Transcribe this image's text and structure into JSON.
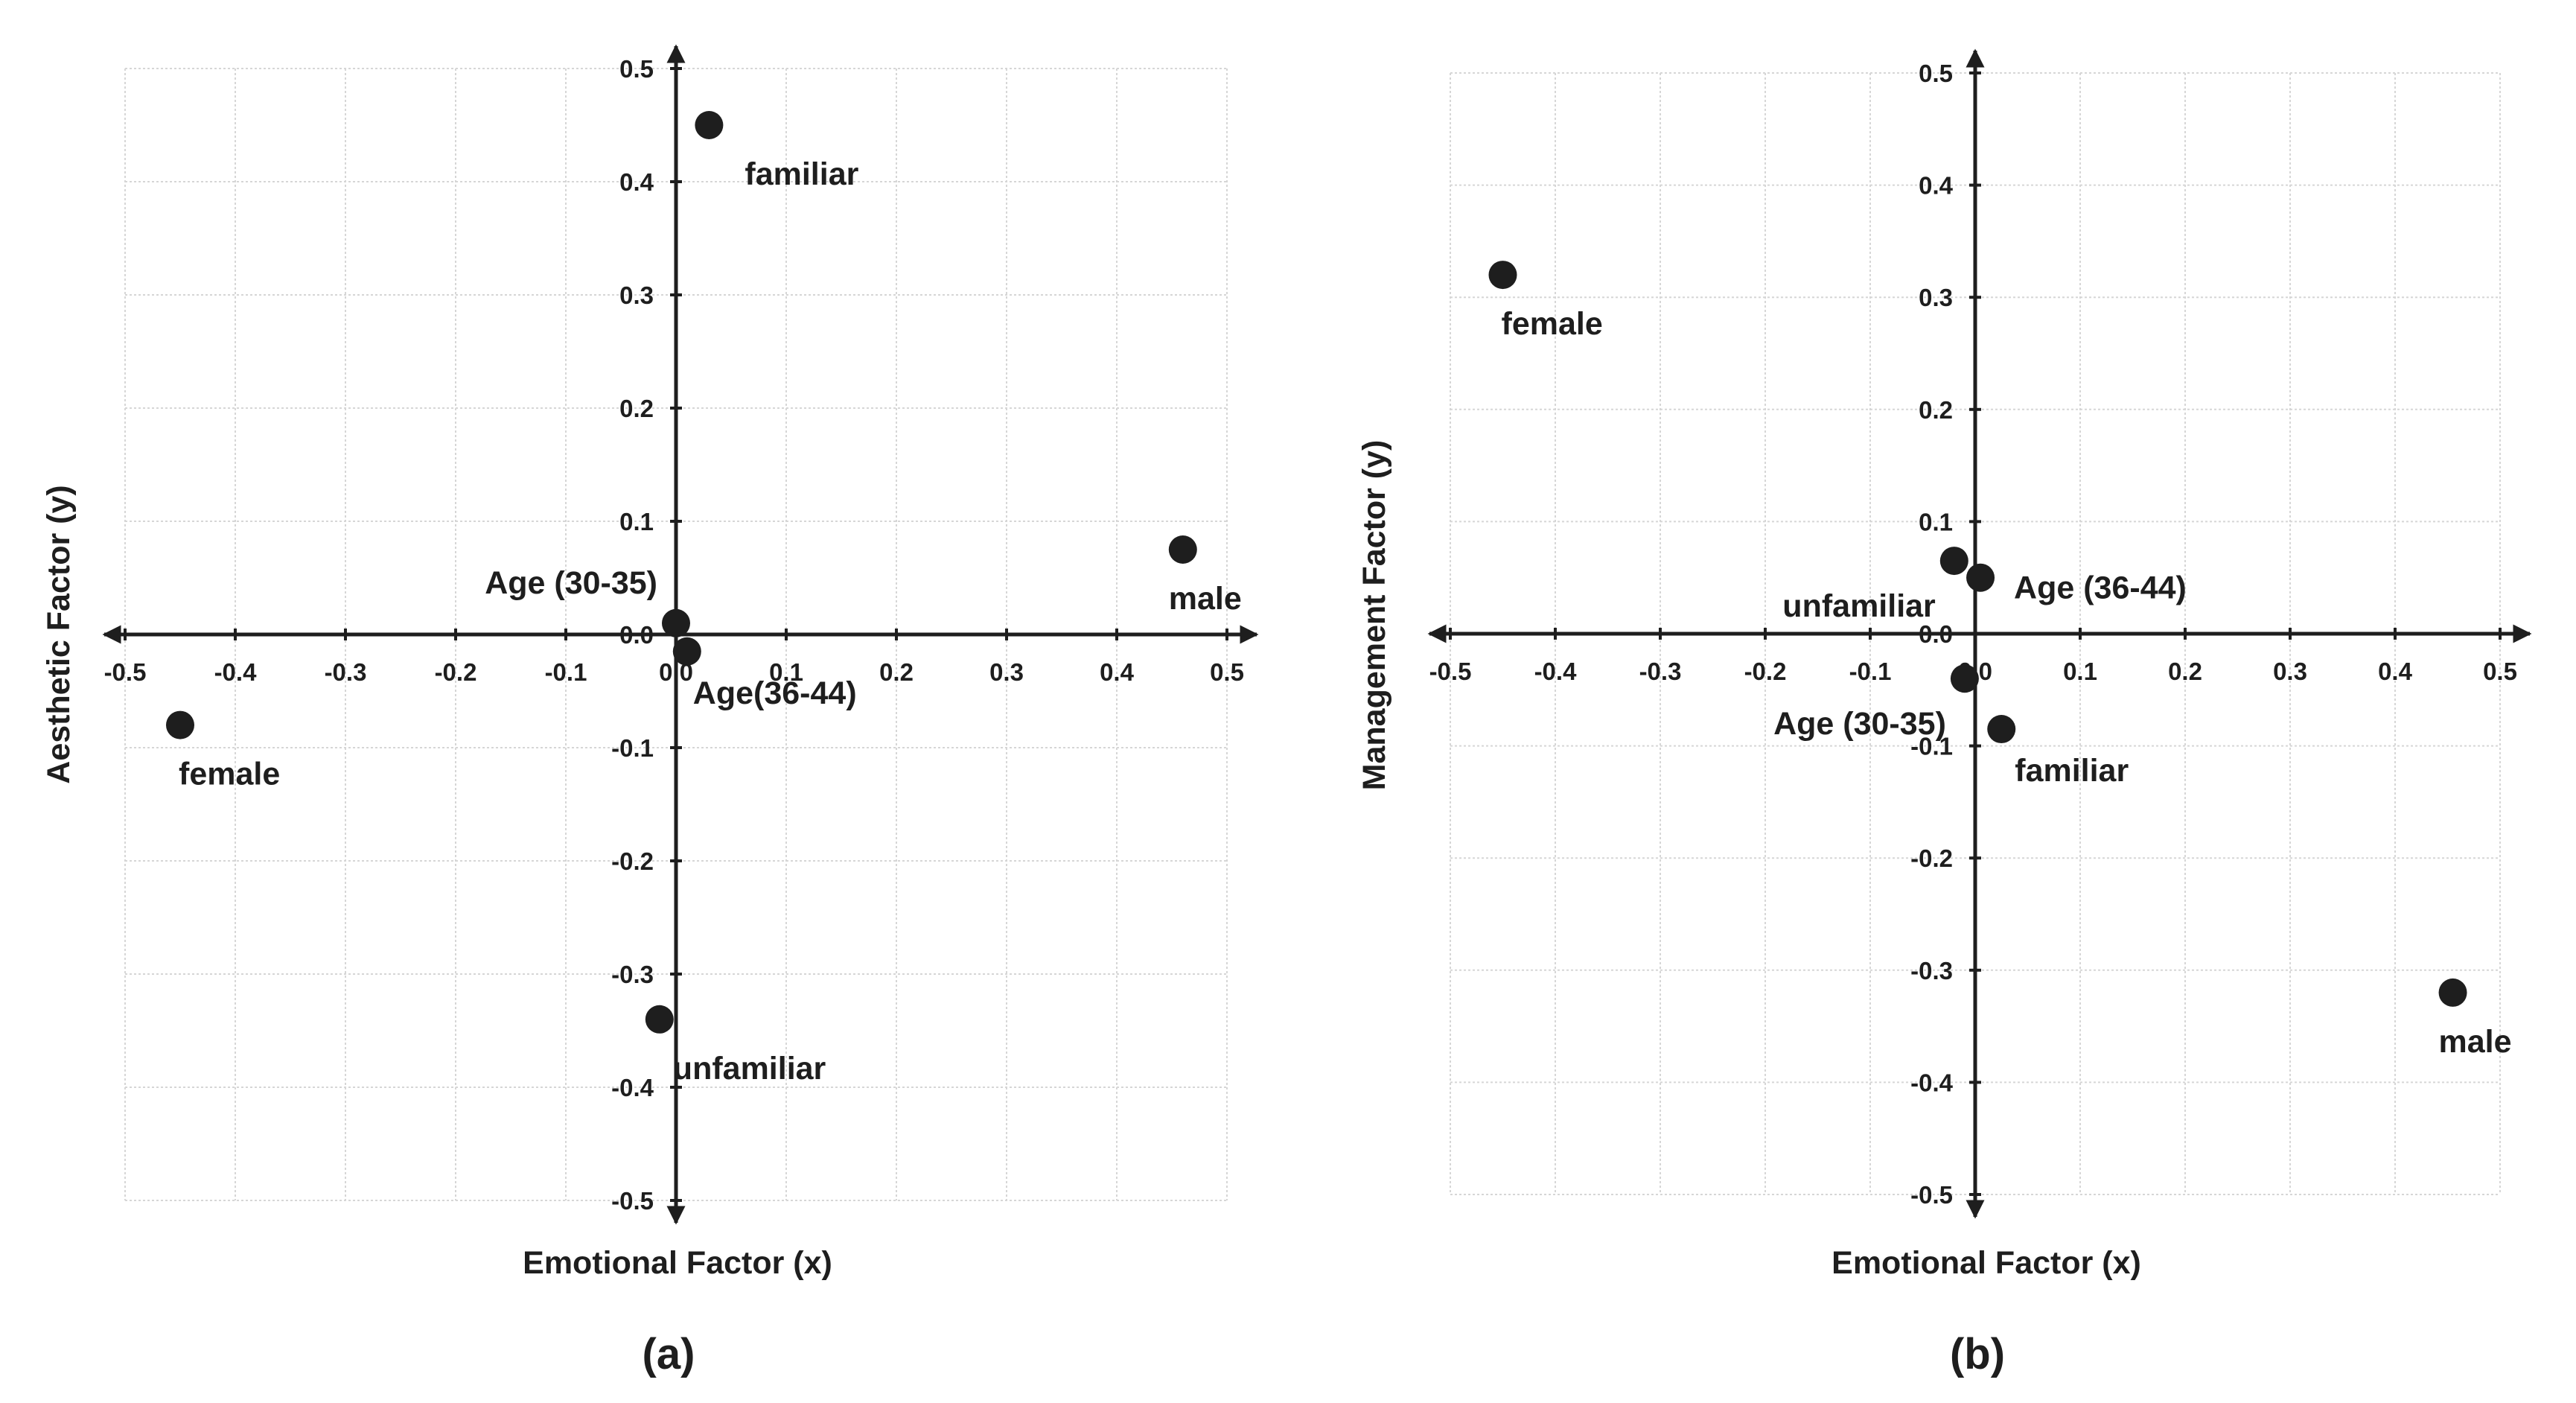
{
  "chart_data": [
    {
      "type": "scatter",
      "panel": "(a)",
      "xlabel": "Emotional Factor (x)",
      "ylabel": "Aesthetic Factor (y)",
      "xlim": [
        -0.5,
        0.5
      ],
      "ylim": [
        -0.5,
        0.5
      ],
      "x_ticks": [
        "-0.5",
        "-0.4",
        "-0.3",
        "-0.2",
        "-0.1",
        "0.0",
        "0.1",
        "0.2",
        "0.3",
        "0.4",
        "0.5"
      ],
      "y_ticks": [
        "-0.5",
        "-0.4",
        "-0.3",
        "-0.2",
        "-0.1",
        "0.0",
        "0.1",
        "0.2",
        "0.3",
        "0.4",
        "0.5"
      ],
      "grid": true,
      "points": [
        {
          "label": "familiar",
          "x": 0.03,
          "y": 0.45,
          "label_pos": "below-right"
        },
        {
          "label": "male",
          "x": 0.46,
          "y": 0.075,
          "label_pos": "below"
        },
        {
          "label": "Age (30-35)",
          "x": 0.0,
          "y": 0.01,
          "label_pos": "above-left"
        },
        {
          "label": "Age(36-44)",
          "x": 0.01,
          "y": -0.015,
          "label_pos": "below-right"
        },
        {
          "label": "female",
          "x": -0.45,
          "y": -0.08,
          "label_pos": "below-right"
        },
        {
          "label": "unfamiliar",
          "x": -0.015,
          "y": -0.34,
          "label_pos": "below-right"
        }
      ]
    },
    {
      "type": "scatter",
      "panel": "(b)",
      "xlabel": "Emotional Factor (x)",
      "ylabel": "Management Factor (y)",
      "xlim": [
        -0.5,
        0.5
      ],
      "ylim": [
        -0.5,
        0.5
      ],
      "x_ticks": [
        "-0.5",
        "-0.4",
        "-0.3",
        "-0.2",
        "-0.1",
        "0.0",
        "0.1",
        "0.2",
        "0.3",
        "0.4",
        "0.5"
      ],
      "y_ticks": [
        "-0.5",
        "-0.4",
        "-0.3",
        "-0.2",
        "-0.1",
        "0.0",
        "0.1",
        "0.2",
        "0.3",
        "0.4",
        "0.5"
      ],
      "grid": true,
      "points": [
        {
          "label": "female",
          "x": -0.45,
          "y": 0.32,
          "label_pos": "below-right"
        },
        {
          "label": "unfamiliar",
          "x": -0.02,
          "y": 0.065,
          "label_pos": "below-left"
        },
        {
          "label": "Age (36-44)",
          "x": 0.005,
          "y": 0.05,
          "label_pos": "right"
        },
        {
          "label": "Age (30-35)",
          "x": -0.01,
          "y": -0.04,
          "label_pos": "below-left"
        },
        {
          "label": "familiar",
          "x": 0.025,
          "y": -0.085,
          "label_pos": "below-right"
        },
        {
          "label": "male",
          "x": 0.455,
          "y": -0.32,
          "label_pos": "below"
        }
      ]
    }
  ]
}
